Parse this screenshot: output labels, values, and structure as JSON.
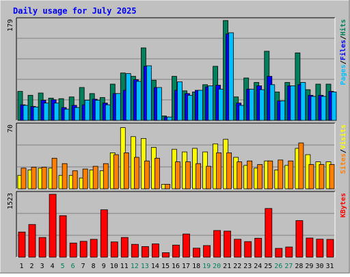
{
  "title": "Daily usage for July 2025",
  "colors": {
    "frame": "#c0c0c0",
    "plot_bg": "#c0c0c0",
    "title": "#0000ff",
    "hits": "#00805c",
    "files": "#0000ff",
    "pages": "#00c0ff",
    "visits": "#ffff00",
    "sites": "#ff8000",
    "kbytes": "#ff0000",
    "weekend_label": "#00805c",
    "weekday_label": "#000000"
  },
  "chart_data": {
    "type": "bar",
    "title": "Daily usage for July 2025",
    "categories": [
      "1",
      "2",
      "3",
      "4",
      "5",
      "6",
      "7",
      "8",
      "9",
      "10",
      "11",
      "12",
      "13",
      "14",
      "15",
      "16",
      "17",
      "18",
      "19",
      "20",
      "21",
      "22",
      "23",
      "24",
      "25",
      "26",
      "27",
      "28",
      "29",
      "30",
      "31"
    ],
    "weekend_days": [
      "5",
      "6",
      "12",
      "13",
      "19",
      "20",
      "26",
      "27"
    ],
    "panels": [
      {
        "name": "hits-files-pages",
        "ymax_label": "179",
        "ylim": [
          0,
          179
        ],
        "legend": [
          {
            "text": "Pages",
            "color": "#00c0ff"
          },
          {
            "text": "/",
            "color": "#000000"
          },
          {
            "text": "Files",
            "color": "#0000ff"
          },
          {
            "text": "/",
            "color": "#000000"
          },
          {
            "text": "Hits",
            "color": "#00805c"
          }
        ],
        "series": [
          {
            "name": "Hits",
            "color": "#00805c",
            "values": [
              52,
              45,
              49,
              40,
              39,
              42,
              59,
              48,
              41,
              65,
              85,
              79,
              130,
              72,
              8,
              79,
              53,
              51,
              64,
              97,
              179,
              42,
              76,
              68,
              124,
              51,
              68,
              121,
              55,
              65,
              65
            ]
          },
          {
            "name": "Files",
            "color": "#0000ff",
            "values": [
              28,
              25,
              36,
              37,
              23,
              27,
              28,
              38,
              31,
              48,
              54,
              73,
              97,
              59,
              6,
              54,
              48,
              54,
              60,
              63,
              155,
              31,
              56,
              62,
              79,
              35,
              62,
              64,
              45,
              45,
              52
            ]
          },
          {
            "name": "Pages",
            "color": "#00c0ff",
            "values": [
              27,
              24,
              31,
              31,
              20,
              23,
              36,
              36,
              28,
              48,
              84,
              70,
              98,
              59,
              6,
              69,
              45,
              54,
              62,
              56,
              157,
              27,
              56,
              55,
              64,
              35,
              62,
              68,
              43,
              43,
              51
            ]
          }
        ]
      },
      {
        "name": "visits-sites",
        "ymax_label": "70",
        "ylim": [
          0,
          70
        ],
        "legend": [
          {
            "text": "Sites",
            "color": "#ff8000"
          },
          {
            "text": "/",
            "color": "#000000"
          },
          {
            "text": "Visits",
            "color": "#ffff00"
          }
        ],
        "series": [
          {
            "name": "Visits",
            "color": "#ffff00",
            "values": [
              15,
              21,
              23,
              23,
              15,
              15,
              12,
              21,
              20,
              40,
              68,
              58,
              56,
              46,
              5,
              44,
              41,
              45,
              41,
              50,
              55,
              35,
              26,
              23,
              31,
              21,
              26,
              45,
              38,
              30,
              30
            ]
          },
          {
            "name": "Sites",
            "color": "#ff8000",
            "values": [
              23,
              24,
              24,
              34,
              28,
              20,
              22,
              25,
              28,
              38,
              40,
              35,
              31,
              34,
              5,
              30,
              30,
              28,
              25,
              40,
              40,
              30,
              31,
              27,
              31,
              32,
              31,
              51,
              27,
              27,
              27
            ]
          }
        ]
      },
      {
        "name": "kbytes",
        "ymax_label": "1523",
        "ylim": [
          0,
          1523
        ],
        "legend": [
          {
            "text": "KBytes",
            "color": "#ff0000"
          }
        ],
        "series": [
          {
            "name": "KBytes",
            "color": "#ff0000",
            "values": [
              610,
              792,
              476,
              1523,
              1005,
              343,
              384,
              432,
              1147,
              369,
              476,
              311,
              256,
              321,
              109,
              293,
              562,
              218,
              282,
              646,
              631,
              434,
              378,
              458,
              1179,
              214,
              246,
              885,
              463,
              436,
              431
            ]
          }
        ]
      }
    ]
  }
}
